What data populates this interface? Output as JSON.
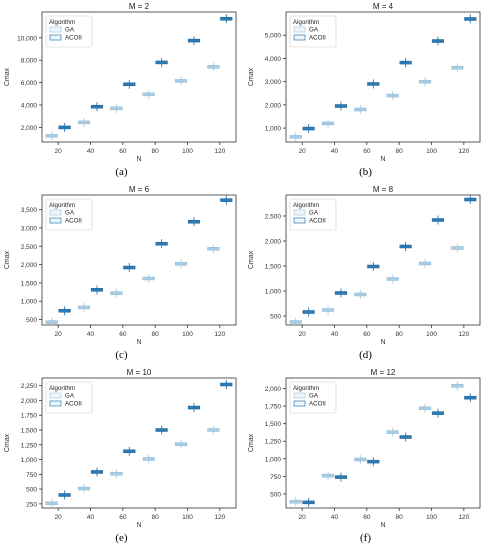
{
  "colors": {
    "ga": "#a9cce3",
    "acoii": "#2c7bb6",
    "axis": "#333333",
    "grid": "#e8e8e8"
  },
  "chart_data": [
    {
      "type": "box",
      "title": "M = 2",
      "caption": "(a)",
      "xlabel": "N",
      "ylabel": "Cmax",
      "categories": [
        "20",
        "40",
        "60",
        "80",
        "100",
        "120"
      ],
      "ylim": [
        700,
        12300
      ],
      "yticks": [
        2000,
        4000,
        6000,
        8000,
        10000
      ],
      "ytick_labels": [
        "2,000",
        "4,000",
        "6,000",
        "8,000",
        "10,000"
      ],
      "legend": {
        "title": "Algorithm",
        "placement": "top-left",
        "entries": [
          "GA",
          "ACOII"
        ]
      },
      "series": [
        {
          "name": "GA",
          "values": [
            1250,
            2450,
            3700,
            4950,
            6150,
            7400
          ]
        },
        {
          "name": "ACOII",
          "values": [
            2000,
            3850,
            5850,
            7800,
            9750,
            11700
          ]
        }
      ]
    },
    {
      "type": "box",
      "title": "M = 4",
      "caption": "(b)",
      "xlabel": "N",
      "ylabel": "Cmax",
      "categories": [
        "20",
        "40",
        "60",
        "80",
        "100",
        "120"
      ],
      "ylim": [
        400,
        6000
      ],
      "yticks": [
        1000,
        2000,
        3000,
        4000,
        5000
      ],
      "ytick_labels": [
        "1,000",
        "2,000",
        "3,000",
        "4,000",
        "5,000"
      ],
      "legend": {
        "title": "Algorithm",
        "placement": "top-left",
        "entries": [
          "GA",
          "ACOII"
        ]
      },
      "series": [
        {
          "name": "GA",
          "values": [
            620,
            1200,
            1800,
            2400,
            3000,
            3600
          ]
        },
        {
          "name": "ACOII",
          "values": [
            980,
            1950,
            2900,
            3820,
            4750,
            5700
          ]
        }
      ]
    },
    {
      "type": "box",
      "title": "M = 6",
      "caption": "(c)",
      "xlabel": "N",
      "ylabel": "Cmax",
      "categories": [
        "20",
        "40",
        "60",
        "80",
        "100",
        "120"
      ],
      "ylim": [
        350,
        3900
      ],
      "yticks": [
        500,
        1000,
        1500,
        2000,
        2500,
        3000,
        3500
      ],
      "ytick_labels": [
        "500",
        "1,000",
        "1,500",
        "2,000",
        "2,500",
        "3,000",
        "3,500"
      ],
      "legend": {
        "title": "Algorithm",
        "placement": "top-left",
        "entries": [
          "GA",
          "ACOII"
        ]
      },
      "series": [
        {
          "name": "GA",
          "values": [
            430,
            830,
            1220,
            1620,
            2020,
            2430
          ]
        },
        {
          "name": "ACOII",
          "values": [
            740,
            1310,
            1920,
            2570,
            3170,
            3760
          ]
        }
      ]
    },
    {
      "type": "box",
      "title": "M = 8",
      "caption": "(d)",
      "xlabel": "N",
      "ylabel": "Cmax",
      "categories": [
        "20",
        "40",
        "60",
        "80",
        "100",
        "120"
      ],
      "ylim": [
        320,
        2920
      ],
      "yticks": [
        500,
        1000,
        1500,
        2000,
        2500
      ],
      "ytick_labels": [
        "500",
        "1,000",
        "1,500",
        "2,000",
        "2,500"
      ],
      "legend": {
        "title": "Algorithm",
        "placement": "top-left",
        "entries": [
          "GA",
          "ACOII"
        ]
      },
      "series": [
        {
          "name": "GA",
          "values": [
            380,
            620,
            930,
            1240,
            1550,
            1860
          ]
        },
        {
          "name": "ACOII",
          "values": [
            580,
            960,
            1490,
            1890,
            2420,
            2830
          ]
        }
      ]
    },
    {
      "type": "box",
      "title": "M = 10",
      "caption": "(e)",
      "xlabel": "N",
      "ylabel": "Cmax",
      "categories": [
        "20",
        "40",
        "60",
        "80",
        "100",
        "120"
      ],
      "ylim": [
        180,
        2380
      ],
      "yticks": [
        250,
        500,
        750,
        1000,
        1250,
        1500,
        1750,
        2000,
        2250
      ],
      "ytick_labels": [
        "250",
        "500",
        "750",
        "1,000",
        "1,250",
        "1,500",
        "1,750",
        "2,000",
        "2,250"
      ],
      "legend": {
        "title": "Algorithm",
        "placement": "top-left",
        "entries": [
          "GA",
          "ACOII"
        ]
      },
      "series": [
        {
          "name": "GA",
          "values": [
            260,
            510,
            760,
            1010,
            1260,
            1500
          ]
        },
        {
          "name": "ACOII",
          "values": [
            400,
            790,
            1140,
            1500,
            1880,
            2270
          ]
        }
      ]
    },
    {
      "type": "box",
      "title": "M = 12",
      "caption": "(f)",
      "xlabel": "N",
      "ylabel": "Cmax",
      "categories": [
        "20",
        "40",
        "60",
        "80",
        "100",
        "120"
      ],
      "ylim": [
        300,
        2150
      ],
      "yticks": [
        500,
        750,
        1000,
        1250,
        1500,
        1750,
        2000
      ],
      "ytick_labels": [
        "500",
        "750",
        "1,000",
        "1,250",
        "1,500",
        "1,750",
        "2,000"
      ],
      "legend": {
        "title": "Algorithm",
        "placement": "top-left",
        "entries": [
          "GA",
          "ACOII"
        ]
      },
      "series": [
        {
          "name": "GA",
          "values": [
            390,
            760,
            990,
            1380,
            1720,
            2040
          ]
        },
        {
          "name": "ACOII",
          "values": [
            380,
            740,
            960,
            1310,
            1650,
            1870
          ]
        }
      ]
    }
  ]
}
